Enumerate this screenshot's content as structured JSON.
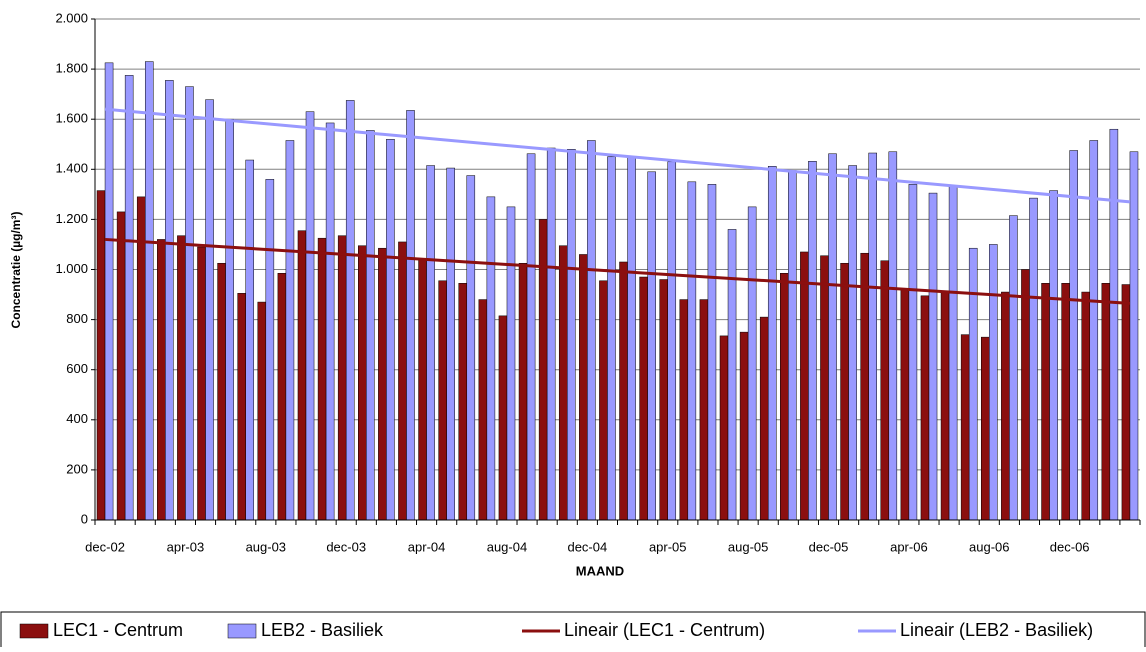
{
  "chart_data": {
    "type": "bar",
    "y_label": "Concentratie (µg/m³)",
    "x_label": "MAAND",
    "categories": [
      "dec-02",
      null,
      null,
      null,
      "apr-03",
      null,
      null,
      null,
      "aug-03",
      null,
      null,
      null,
      "dec-03",
      null,
      null,
      null,
      "apr-04",
      null,
      null,
      null,
      "aug-04",
      null,
      null,
      null,
      "dec-04",
      null,
      null,
      null,
      "apr-05",
      null,
      null,
      null,
      "aug-05",
      null,
      null,
      null,
      "dec-05",
      null,
      null,
      null,
      "apr-06",
      null,
      null,
      null,
      "aug-06",
      null,
      null,
      null,
      "dec-06",
      null,
      null,
      null
    ],
    "series": [
      {
        "name": "LEC1 - Centrum",
        "color": "#8b0f0f",
        "values": [
          1315,
          1230,
          1290,
          1120,
          1135,
          1090,
          1025,
          905,
          870,
          985,
          1155,
          1125,
          1135,
          1095,
          1085,
          1110,
          1040,
          955,
          945,
          880,
          815,
          1025,
          1200,
          1095,
          1060,
          955,
          1030,
          970,
          960,
          880,
          880,
          735,
          750,
          810,
          985,
          1070,
          1055,
          1025,
          1065,
          1035,
          920,
          895,
          910,
          740,
          730,
          910,
          1000,
          945,
          945,
          910,
          945,
          940
        ]
      },
      {
        "name": "LEB2 - Basiliek",
        "color": "#9999ff",
        "values": [
          1825,
          1775,
          1830,
          1755,
          1730,
          1678,
          1600,
          1437,
          1360,
          1515,
          1630,
          1585,
          1675,
          1555,
          1520,
          1635,
          1415,
          1405,
          1375,
          1290,
          1250,
          1462,
          1485,
          1480,
          1515,
          1450,
          1450,
          1390,
          1430,
          1350,
          1340,
          1160,
          1250,
          1412,
          1395,
          1432,
          1462,
          1415,
          1465,
          1470,
          1340,
          1305,
          1335,
          1085,
          1100,
          1215,
          1285,
          1315,
          1475,
          1515,
          1560,
          1470
        ]
      }
    ],
    "trendlines": [
      {
        "name": "Lineair (LEC1 - Centrum)",
        "color": "#8b0f0f",
        "values": [
          1120,
          865
        ]
      },
      {
        "name": "Lineair (LEB2 - Basiliek)",
        "color": "#9999ff",
        "values": [
          1640,
          1270
        ]
      }
    ],
    "ylim": [
      0,
      2000
    ],
    "yticks": [
      0,
      200,
      400,
      600,
      800,
      {
        "value": 1000,
        "label": "1.000"
      },
      {
        "value": 1200,
        "label": "1.200"
      },
      {
        "value": 1400,
        "label": "1.400"
      },
      {
        "value": 1600,
        "label": "1.600"
      },
      {
        "value": 1800,
        "label": "1.800"
      },
      {
        "value": 2000,
        "label": "2.000"
      }
    ],
    "grid": true
  }
}
